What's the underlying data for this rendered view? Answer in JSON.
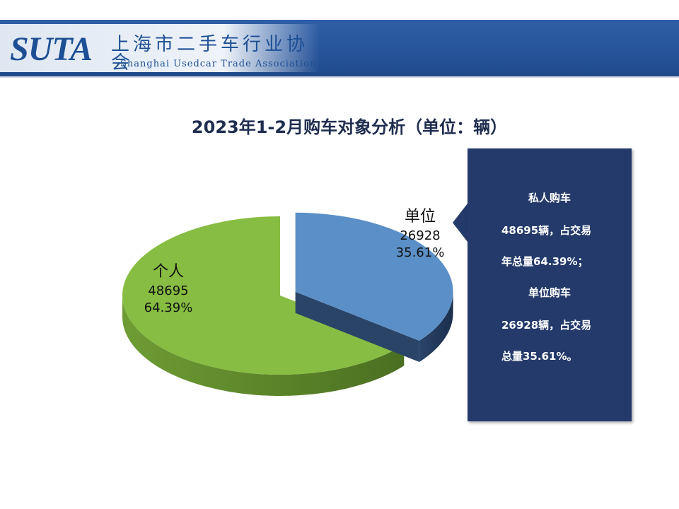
{
  "header": {
    "logo_text": "SUTA",
    "org_name_cn": "上海市二手车行业协会",
    "org_name_en": "Shanghai Usedcar Trade Association"
  },
  "chart_data": {
    "type": "pie",
    "title": "2023年1-2月购车对象分析（单位：辆）",
    "slices": [
      {
        "label": "单位",
        "value": 26928,
        "percent": "35.61%",
        "color": "#5b8fc7",
        "side_color": "#2a4468",
        "exploded": true
      },
      {
        "label": "个人",
        "value": 48695,
        "percent": "64.39%",
        "color": "#86bd42",
        "side_color": "#4b6f21",
        "exploded": false
      }
    ],
    "legend": "none"
  },
  "callout": {
    "lines": [
      "私人购车",
      "48695辆，占交易",
      "年总量64.39%；",
      "单位购车",
      "26928辆，占交易",
      "总量35.61%。"
    ],
    "bg_color": "#243a6b"
  }
}
